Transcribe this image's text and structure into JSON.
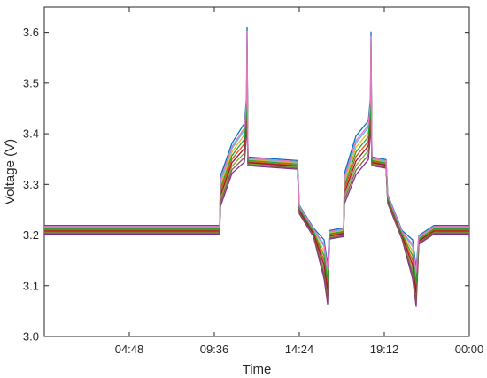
{
  "chart_data": {
    "type": "line",
    "xlabel": "Time",
    "ylabel": "Voltage (V)",
    "xlim": [
      0,
      24
    ],
    "ylim": [
      3.0,
      3.65
    ],
    "x_ticks": [
      4.8,
      9.6,
      14.4,
      19.2,
      24.0
    ],
    "x_tick_labels": [
      "04:48",
      "09:36",
      "14:24",
      "19:12",
      "00:00"
    ],
    "y_ticks": [
      3.0,
      3.1,
      3.2,
      3.3,
      3.4,
      3.5,
      3.6
    ],
    "y_tick_labels": [
      "3.0",
      "3.1",
      "3.2",
      "3.3",
      "3.4",
      "3.5",
      "3.6"
    ],
    "grid": false,
    "legend": "none",
    "series_count_note_hidden": true,
    "series": [
      {
        "color": "#d95319",
        "offset": 0.0
      },
      {
        "color": "#edb120",
        "offset": 0.004
      },
      {
        "color": "#77ac30",
        "offset": -0.004
      },
      {
        "color": "#0072bd",
        "offset": 0.009
      },
      {
        "color": "#4dbeee",
        "offset": 0.006
      },
      {
        "color": "#7e2f8e",
        "offset": -0.008
      },
      {
        "color": "#a2142f",
        "offset": -0.002
      },
      {
        "color": "#8c564b",
        "offset": -0.006
      },
      {
        "color": "#2ca02c",
        "offset": 0.002
      },
      {
        "color": "#e377c2",
        "offset": 0.007
      }
    ],
    "base_profile": [
      [
        0.0,
        3.21
      ],
      [
        9.9,
        3.21
      ],
      [
        9.95,
        3.285
      ],
      [
        10.6,
        3.35
      ],
      [
        11.3,
        3.38
      ],
      [
        11.42,
        3.43
      ],
      [
        11.45,
        3.57
      ],
      [
        11.5,
        3.345
      ],
      [
        14.3,
        3.338
      ],
      [
        14.4,
        3.25
      ],
      [
        15.2,
        3.205
      ],
      [
        15.8,
        3.15
      ],
      [
        16.0,
        3.1
      ],
      [
        16.1,
        3.2
      ],
      [
        16.9,
        3.205
      ],
      [
        16.95,
        3.29
      ],
      [
        17.6,
        3.355
      ],
      [
        18.3,
        3.385
      ],
      [
        18.42,
        3.43
      ],
      [
        18.45,
        3.56
      ],
      [
        18.5,
        3.345
      ],
      [
        19.3,
        3.34
      ],
      [
        19.4,
        3.27
      ],
      [
        20.2,
        3.2
      ],
      [
        20.8,
        3.15
      ],
      [
        21.0,
        3.095
      ],
      [
        21.15,
        3.19
      ],
      [
        22.0,
        3.21
      ],
      [
        24.0,
        3.21
      ]
    ]
  }
}
